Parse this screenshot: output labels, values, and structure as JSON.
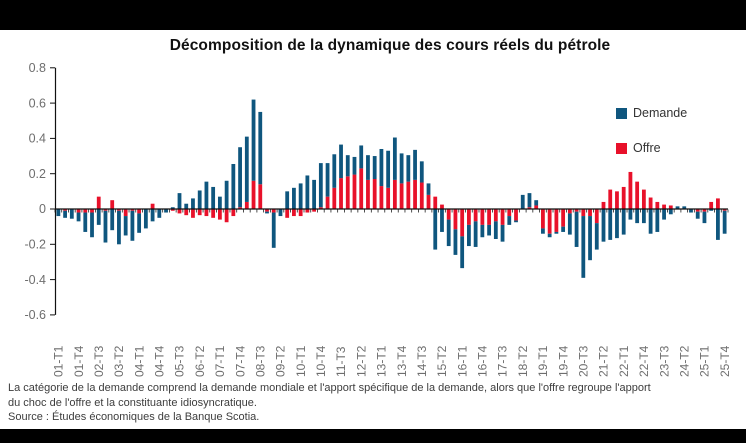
{
  "title_note": "all content data lives here",
  "footnote": {
    "line1": "La catégorie de la demande comprend la demande mondiale et l'apport spécifique de la demande, alors que l'offre regroupe l'apport",
    "line2": "du choc de l'offre et la constituante idiosyncratique.",
    "source": "Source : Études économiques de la Banque Scotia."
  },
  "chart_data": {
    "type": "bar",
    "stacked": true,
    "title": "Décomposition de la dynamique des cours réels du pétrole",
    "xlabel": "",
    "ylabel": "",
    "ylim": [
      -0.6,
      0.8
    ],
    "yticks": [
      "0.8",
      "0.6",
      "0.4",
      "0.2",
      "0",
      "-0.2",
      "-0.4",
      "-0.6"
    ],
    "ytick_values": [
      0.8,
      0.6,
      0.4,
      0.2,
      0,
      -0.2,
      -0.4,
      -0.6
    ],
    "grid": false,
    "legend_position": "right-top",
    "xtick_shown": [
      "01-T1",
      "01-T4",
      "02-T3",
      "03-T2",
      "04-T1",
      "04-T4",
      "05-T3",
      "06-T2",
      "07-T1",
      "07-T4",
      "08-T3",
      "09-T2",
      "10-T1",
      "10-T4",
      "11-T3",
      "12-T2",
      "13-T1",
      "13-T4",
      "14-T3",
      "15-T2",
      "16-T1",
      "16-T4",
      "17-T3",
      "18-T2",
      "19-T1",
      "19-T4",
      "20-T3",
      "21-T2",
      "22-T1",
      "22-T4",
      "23-T3",
      "24-T2",
      "25-T1",
      "25-T4"
    ],
    "x": [
      "01-T1",
      "01-T2",
      "01-T3",
      "01-T4",
      "02-T1",
      "02-T2",
      "02-T3",
      "02-T4",
      "03-T1",
      "03-T2",
      "03-T3",
      "03-T4",
      "04-T1",
      "04-T2",
      "04-T3",
      "04-T4",
      "05-T1",
      "05-T2",
      "05-T3",
      "05-T4",
      "06-T1",
      "06-T2",
      "06-T3",
      "06-T4",
      "07-T1",
      "07-T2",
      "07-T3",
      "07-T4",
      "08-T1",
      "08-T2",
      "08-T3",
      "08-T4",
      "09-T1",
      "09-T2",
      "09-T3",
      "09-T4",
      "10-T1",
      "10-T2",
      "10-T3",
      "10-T4",
      "11-T1",
      "11-T2",
      "11-T3",
      "11-T4",
      "12-T1",
      "12-T2",
      "12-T3",
      "12-T4",
      "13-T1",
      "13-T2",
      "13-T3",
      "13-T4",
      "14-T1",
      "14-T2",
      "14-T3",
      "14-T4",
      "15-T1",
      "15-T2",
      "15-T3",
      "15-T4",
      "16-T1",
      "16-T2",
      "16-T3",
      "16-T4",
      "17-T1",
      "17-T2",
      "17-T3",
      "17-T4",
      "18-T1",
      "18-T2",
      "18-T3",
      "18-T4",
      "19-T1",
      "19-T2",
      "19-T3",
      "19-T4",
      "20-T1",
      "20-T2",
      "20-T3",
      "20-T4",
      "21-T1",
      "21-T2",
      "21-T3",
      "21-T4",
      "22-T1",
      "22-T2",
      "22-T3",
      "22-T4",
      "23-T1",
      "23-T2",
      "23-T3",
      "23-T4",
      "24-T1",
      "24-T2",
      "24-T3",
      "24-T4",
      "25-T1",
      "25-T2",
      "25-T3",
      "25-T4"
    ],
    "series": [
      {
        "name": "Demande",
        "color": "#0f567e",
        "values": [
          -0.04,
          -0.04,
          -0.055,
          -0.05,
          -0.11,
          -0.14,
          -0.09,
          -0.18,
          -0.12,
          -0.19,
          -0.11,
          -0.17,
          -0.11,
          -0.11,
          -0.07,
          -0.05,
          -0.02,
          0.01,
          0.09,
          0.03,
          0.06,
          0.105,
          0.155,
          0.125,
          0.07,
          0.16,
          0.255,
          0.34,
          0.37,
          0.46,
          0.41,
          -0.01,
          -0.2,
          -0.04,
          0.1,
          0.12,
          0.145,
          0.19,
          0.165,
          0.25,
          0.19,
          0.19,
          0.19,
          0.12,
          0.1,
          0.13,
          0.14,
          0.13,
          0.21,
          0.21,
          0.24,
          0.17,
          0.15,
          0.17,
          0.12,
          0.065,
          -0.23,
          -0.13,
          -0.15,
          -0.145,
          -0.18,
          -0.12,
          -0.145,
          -0.07,
          -0.06,
          -0.1,
          -0.095,
          -0.05,
          -0.01,
          0.08,
          0.08,
          0.03,
          -0.03,
          -0.02,
          -0.01,
          -0.03,
          -0.12,
          -0.2,
          -0.35,
          -0.25,
          -0.15,
          -0.185,
          -0.175,
          -0.165,
          -0.145,
          -0.06,
          -0.08,
          -0.08,
          -0.14,
          -0.13,
          -0.06,
          -0.03,
          0.015,
          0.015,
          -0.02,
          -0.04,
          -0.065,
          -0.01,
          -0.175,
          -0.13
        ]
      },
      {
        "name": "Offre",
        "color": "#e8112a",
        "values": [
          0,
          -0.01,
          0,
          -0.02,
          -0.02,
          -0.02,
          0.07,
          -0.01,
          0.05,
          -0.01,
          -0.04,
          -0.01,
          -0.025,
          0,
          0.03,
          0,
          0,
          -0.01,
          -0.025,
          -0.035,
          -0.05,
          -0.035,
          -0.04,
          -0.05,
          -0.06,
          -0.075,
          -0.04,
          0.01,
          0.04,
          0.16,
          0.14,
          -0.015,
          -0.02,
          0,
          -0.05,
          -0.04,
          -0.04,
          -0.02,
          -0.015,
          0.01,
          0.07,
          0.12,
          0.175,
          0.185,
          0.195,
          0.23,
          0.165,
          0.17,
          0.13,
          0.12,
          0.165,
          0.145,
          0.155,
          0.165,
          0.15,
          0.08,
          0.07,
          0.025,
          -0.06,
          -0.115,
          -0.155,
          -0.09,
          -0.07,
          -0.09,
          -0.09,
          -0.07,
          -0.09,
          -0.04,
          -0.065,
          0,
          0.01,
          0.02,
          -0.11,
          -0.14,
          -0.13,
          -0.1,
          -0.025,
          -0.015,
          -0.04,
          -0.04,
          -0.08,
          0.04,
          0.11,
          0.1,
          0.125,
          0.21,
          0.155,
          0.11,
          0.065,
          0.04,
          0.025,
          0.02,
          0,
          0,
          0,
          -0.015,
          -0.015,
          0.04,
          0.06,
          -0.01
        ]
      }
    ]
  }
}
